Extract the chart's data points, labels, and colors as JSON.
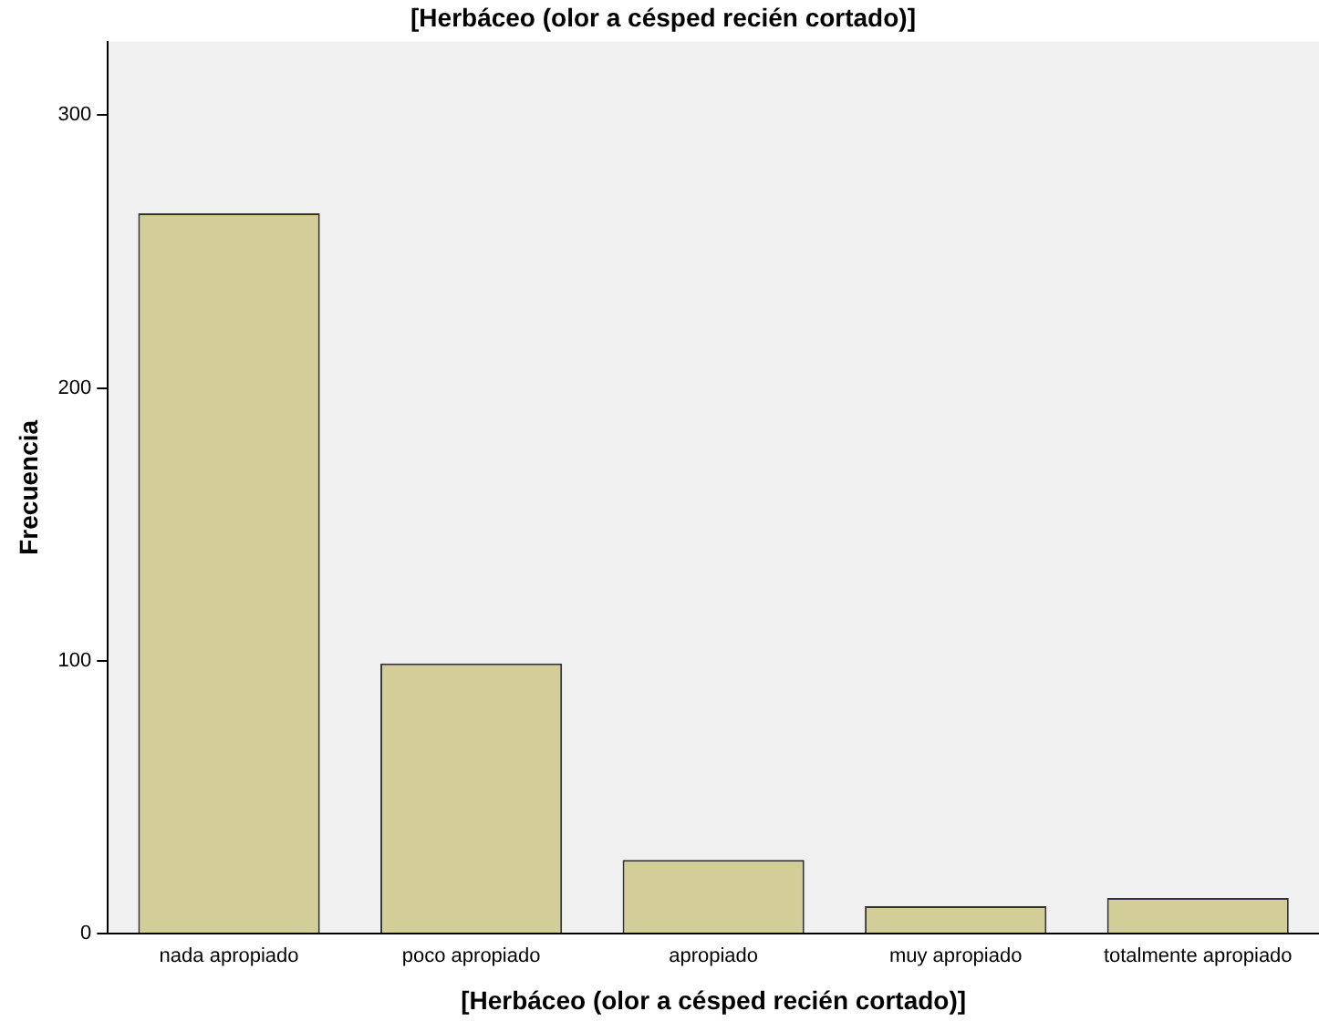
{
  "chart_data": {
    "type": "bar",
    "title": "[Herbáceo (olor a césped recién cortado)]",
    "xlabel": "[Herbáceo (olor a césped recién cortado)]",
    "ylabel": "Frecuencia",
    "categories": [
      "nada apropiado",
      "poco apropiado",
      "apropiado",
      "muy apropiado",
      "totalmente apropiado"
    ],
    "values": [
      264,
      99,
      27,
      10,
      13
    ],
    "color": "#d3ce98",
    "ylim": [
      0,
      327
    ],
    "yticks": [
      0,
      100,
      200,
      300
    ],
    "grid": false,
    "legend": false
  }
}
